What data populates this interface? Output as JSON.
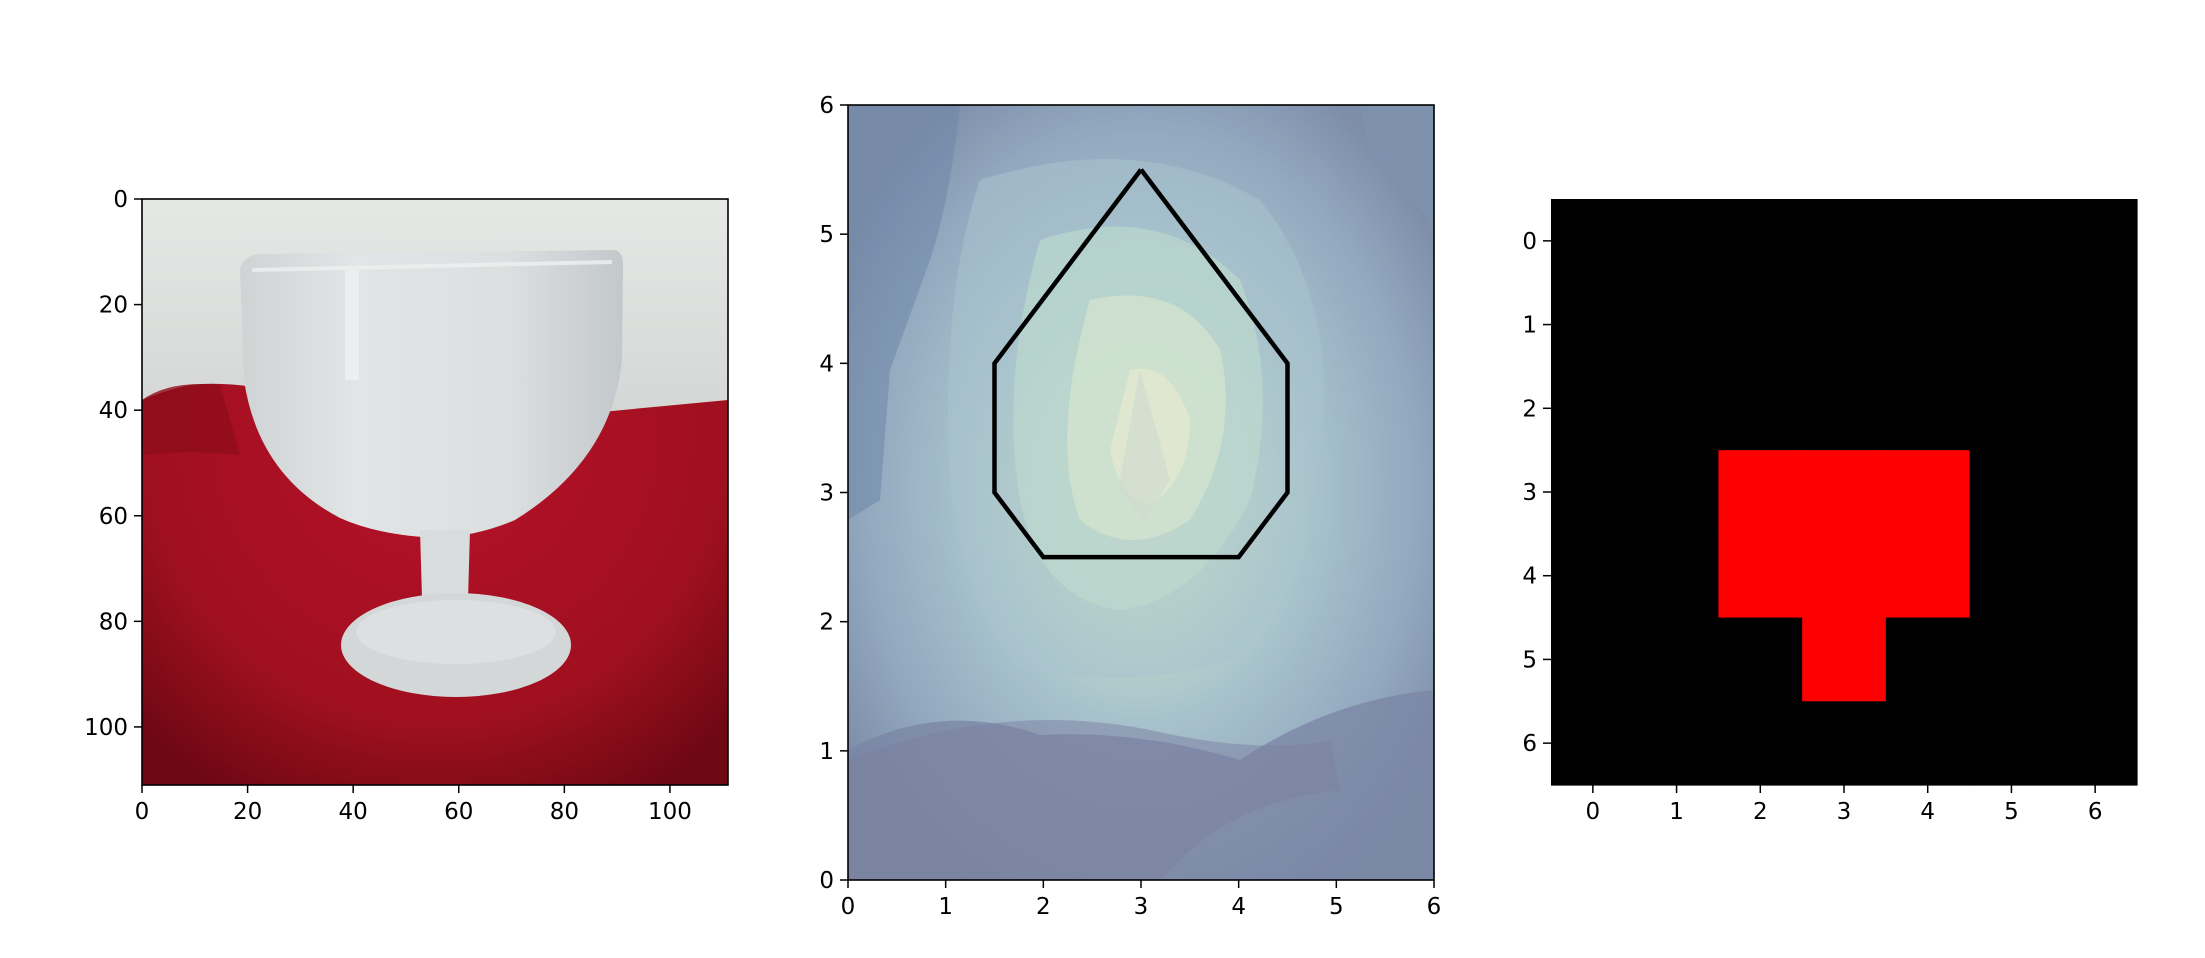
{
  "chart_data": [
    {
      "type": "image",
      "description_free": true,
      "xlim": [
        0,
        111
      ],
      "ylim": [
        111,
        0
      ],
      "xticks": [
        0,
        20,
        40,
        60,
        80,
        100
      ],
      "yticks": [
        0,
        20,
        40,
        60,
        80,
        100
      ],
      "xlabel": "",
      "ylabel": "",
      "title": ""
    },
    {
      "type": "contour",
      "xlim": [
        0,
        6
      ],
      "ylim": [
        0,
        6
      ],
      "xticks": [
        0,
        1,
        2,
        3,
        4,
        5,
        6
      ],
      "yticks": [
        0,
        1,
        2,
        3,
        4,
        5,
        6
      ],
      "xlabel": "",
      "ylabel": "",
      "title": "",
      "polygon": [
        [
          3,
          5.5
        ],
        [
          4.5,
          4
        ],
        [
          4.5,
          3
        ],
        [
          4,
          2.5
        ],
        [
          2,
          2.5
        ],
        [
          1.5,
          3
        ],
        [
          1.5,
          4
        ],
        [
          3,
          5.5
        ]
      ],
      "polygon_color": "#000000",
      "colormap": [
        "#7b86a3",
        "#8ea4be",
        "#a3bccb",
        "#b9d7cc",
        "#dfe8cf"
      ]
    },
    {
      "type": "heatmap",
      "xlim": [
        -0.5,
        6.5
      ],
      "ylim": [
        6.5,
        -0.5
      ],
      "xticks": [
        0,
        1,
        2,
        3,
        4,
        5,
        6
      ],
      "yticks": [
        0,
        1,
        2,
        3,
        4,
        5,
        6
      ],
      "xlabel": "",
      "ylabel": "",
      "title": "",
      "grid": [
        [
          0,
          0,
          0,
          0,
          0,
          0,
          0
        ],
        [
          0,
          0,
          0,
          0,
          0,
          0,
          0
        ],
        [
          0,
          0,
          0,
          0,
          0,
          0,
          0
        ],
        [
          0,
          0,
          1,
          1,
          1,
          0,
          0
        ],
        [
          0,
          0,
          1,
          1,
          1,
          0,
          0
        ],
        [
          0,
          0,
          0,
          1,
          0,
          0,
          0
        ],
        [
          0,
          0,
          0,
          0,
          0,
          0,
          0
        ]
      ],
      "colors": {
        "0": "#000000",
        "1": "#ff0000"
      }
    }
  ]
}
